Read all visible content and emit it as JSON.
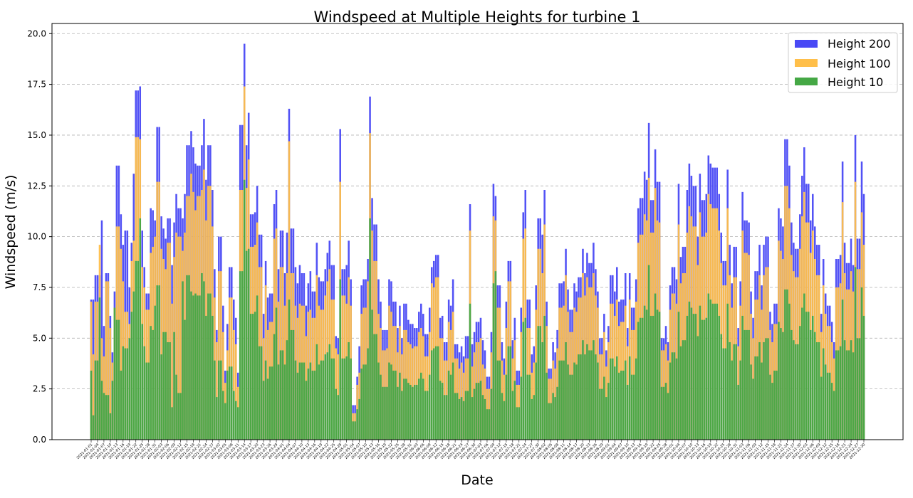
{
  "chart_data": {
    "type": "bar",
    "title": "Windspeed at Multiple Heights for turbine 1",
    "xlabel": "Date",
    "ylabel": "Windspeed (m/s)",
    "ylim": [
      0,
      20.5
    ],
    "yticks": [
      "0.0",
      "2.5",
      "5.0",
      "7.5",
      "10.0",
      "12.5",
      "15.0",
      "17.5",
      "20.0"
    ],
    "grid": "y, dashed",
    "legend_position": "top-right",
    "x_start": "2021-01-01",
    "x_end": "2021-12-30",
    "x_tick_labels": [
      "2021-01-01",
      "2021-01-04",
      "2021-01-07",
      "2021-01-10",
      "2021-01-13",
      "2021-01-16",
      "2021-01-19",
      "2021-01-22",
      "2021-01-25",
      "2021-01-28",
      "2021-01-31",
      "2021-02-03",
      "2021-02-06",
      "2021-02-09",
      "2021-02-12",
      "2021-02-15",
      "2021-02-18",
      "2021-02-21",
      "2021-02-24",
      "2021-02-27",
      "2021-03-02",
      "2021-03-05",
      "2021-03-08",
      "2021-03-11",
      "2021-03-14",
      "2021-03-17",
      "2021-03-20",
      "2021-03-23",
      "2021-03-26",
      "2021-03-29",
      "2021-04-01",
      "2021-04-04",
      "2021-04-07",
      "2021-04-10",
      "2021-04-13",
      "2021-04-16",
      "2021-04-19",
      "2021-04-22",
      "2021-04-25",
      "2021-04-28",
      "2021-05-01",
      "2021-05-04",
      "2021-05-07",
      "2021-05-10",
      "2021-05-13",
      "2021-05-16",
      "2021-05-19",
      "2021-05-22",
      "2021-05-25",
      "2021-05-28",
      "2021-05-31",
      "2021-06-03",
      "2021-06-06",
      "2021-06-09",
      "2021-06-12",
      "2021-06-15",
      "2021-06-18",
      "2021-06-21",
      "2021-06-24",
      "2021-06-27",
      "2021-06-30",
      "2021-07-03",
      "2021-07-06",
      "2021-07-09",
      "2021-07-12",
      "2021-07-15",
      "2021-07-18",
      "2021-07-21",
      "2021-07-24",
      "2021-07-27",
      "2021-07-30",
      "2021-08-02",
      "2021-08-05",
      "2021-08-08",
      "2021-08-11",
      "2021-08-14",
      "2021-08-17",
      "2021-08-20",
      "2021-08-23",
      "2021-08-26",
      "2021-08-29",
      "2021-09-01",
      "2021-09-04",
      "2021-09-07",
      "2021-09-10",
      "2021-09-13",
      "2021-09-16",
      "2021-09-19",
      "2021-09-22",
      "2021-09-25",
      "2021-09-28",
      "2021-10-01",
      "2021-10-04",
      "2021-10-07",
      "2021-10-10",
      "2021-10-13",
      "2021-10-16",
      "2021-10-19",
      "2021-10-22",
      "2021-10-25",
      "2021-10-28",
      "2021-10-31",
      "2021-11-03",
      "2021-11-06",
      "2021-11-09",
      "2021-11-12",
      "2021-11-15",
      "2021-11-18",
      "2021-11-21",
      "2021-11-24",
      "2021-11-27",
      "2021-11-30",
      "2021-12-03",
      "2021-12-06",
      "2021-12-09",
      "2021-12-12",
      "2021-12-15",
      "2021-12-18",
      "2021-12-21",
      "2021-12-24",
      "2021-12-27",
      "2021-12-30"
    ],
    "series": [
      {
        "name": "Height 200",
        "color": "#4949f5",
        "values": [
          6.9,
          6.9,
          8.1,
          8.1,
          10.8,
          5.6,
          8.2,
          6.1,
          4.3,
          7.3,
          13.5,
          11.1,
          9.6,
          10.3,
          7.5,
          9.7,
          13.1,
          17.2,
          17.4,
          10.3,
          8.5,
          7.2,
          11.4,
          11.3,
          10.8,
          15.4,
          11.0,
          10.4,
          9.9,
          10.9,
          8.6,
          10.7,
          12.1,
          11.4,
          10.9,
          12.1,
          14.5,
          15.2,
          14.4,
          13.6,
          13.5,
          14.5,
          15.8,
          12.8,
          14.5,
          12.3,
          8.4,
          5.4,
          10.0,
          6.6,
          3.4,
          5.7,
          8.5,
          6.9,
          6.0,
          3.3,
          15.5,
          19.5,
          14.5,
          16.1,
          11.1,
          11.2,
          12.5,
          10.1,
          6.2,
          8.8,
          7.0,
          7.2,
          11.6,
          12.3,
          8.4,
          10.3,
          8.2,
          10.2,
          16.3,
          10.4,
          8.5,
          7.7,
          8.6,
          8.2,
          6.6,
          7.7,
          8.3,
          7.3,
          9.7,
          8.0,
          7.8,
          8.4,
          9.2,
          9.8,
          8.6,
          5.1,
          5.0,
          15.3,
          8.4,
          8.6,
          9.8,
          7.9,
          1.7,
          3.1,
          4.6,
          7.6,
          7.9,
          8.9,
          16.9,
          11.9,
          10.6,
          7.9,
          6.8,
          5.4,
          5.4,
          7.9,
          7.8,
          6.8,
          5.5,
          6.6,
          5.0,
          6.7,
          5.9,
          5.7,
          5.7,
          5.5,
          6.3,
          6.7,
          6.2,
          5.2,
          6.5,
          8.5,
          8.8,
          9.1,
          6.0,
          6.1,
          4.8,
          6.9,
          6.6,
          7.9,
          4.7,
          4.3,
          4.6,
          4.1,
          5.1,
          11.6,
          4.7,
          5.3,
          5.8,
          6.0,
          4.9,
          4.4,
          3.1,
          5.3,
          12.6,
          12.0,
          7.6,
          4.8,
          4.0,
          6.8,
          8.8,
          4.9,
          6.0,
          3.4,
          6.5,
          11.2,
          12.3,
          6.9,
          4.2,
          4.6,
          7.6,
          10.9,
          10.1,
          12.3,
          6.8,
          3.5,
          4.8,
          4.3,
          5.4,
          7.7,
          7.8,
          9.4,
          7.4,
          6.4,
          7.7,
          7.3,
          8.0,
          9.4,
          8.2,
          9.2,
          8.7,
          9.7,
          8.4,
          7.3,
          5.0,
          6.2,
          4.4,
          5.6,
          8.1,
          7.3,
          8.5,
          6.8,
          6.9,
          8.2,
          5.5,
          8.2,
          6.5,
          7.9,
          11.4,
          11.9,
          13.2,
          12.8,
          15.6,
          11.8,
          14.3,
          12.7,
          12.7,
          5.0,
          5.6,
          4.8,
          7.6,
          8.5,
          7.9,
          12.6,
          9.0,
          9.5,
          12.3,
          13.6,
          13.0,
          12.5,
          10.0,
          13.1,
          11.8,
          12.1,
          14.0,
          13.6,
          13.4,
          13.4,
          12.1,
          10.2,
          8.8,
          13.3,
          9.6,
          7.7,
          9.5,
          5.5,
          7.8,
          12.2,
          10.8,
          10.7,
          7.3,
          6.0,
          8.3,
          9.6,
          7.6,
          9.6,
          10.0,
          6.3,
          5.7,
          6.7,
          11.4,
          10.9,
          10.5,
          14.8,
          13.5,
          10.7,
          9.7,
          9.4,
          11.1,
          13.0,
          14.4,
          12.6,
          10.8,
          12.1,
          10.5,
          9.6,
          6.2,
          8.9,
          7.2,
          6.6,
          5.8,
          4.8,
          8.9,
          9.1,
          13.7,
          9.7,
          8.7,
          9.9,
          8.6,
          15.0,
          9.9,
          13.7,
          12.1
        ],
        "note": ""
      },
      {
        "name": "Height 100",
        "color": "#ffbf4a",
        "values": [
          6.8,
          4.2,
          6.8,
          9.6,
          5.0,
          4.1,
          7.8,
          5.5,
          3.8,
          6.5,
          10.5,
          9.4,
          7.8,
          6.3,
          5.7,
          8.8,
          9.8,
          14.9,
          14.8,
          8.5,
          7.5,
          6.4,
          9.2,
          9.5,
          10.0,
          12.7,
          9.4,
          8.9,
          8.4,
          9.7,
          6.7,
          9.0,
          10.2,
          10.0,
          9.3,
          10.2,
          12.0,
          13.1,
          12.2,
          11.3,
          12.0,
          12.3,
          13.3,
          10.8,
          12.5,
          10.5,
          7.0,
          4.8,
          8.3,
          5.3,
          2.8,
          4.4,
          7.0,
          5.4,
          4.7,
          2.6,
          12.3,
          17.4,
          12.4,
          13.8,
          9.5,
          9.6,
          10.7,
          8.5,
          5.0,
          7.6,
          5.4,
          5.8,
          9.9,
          10.4,
          6.8,
          8.5,
          6.6,
          8.2,
          14.7,
          8.2,
          6.6,
          6.0,
          6.7,
          6.6,
          5.1,
          6.3,
          6.4,
          6.0,
          8.1,
          6.6,
          6.4,
          7.1,
          7.8,
          8.4,
          6.9,
          4.5,
          4.2,
          12.7,
          7.1,
          6.7,
          8.0,
          6.6,
          1.3,
          2.7,
          3.3,
          6.2,
          6.5,
          7.8,
          15.1,
          10.3,
          8.8,
          6.2,
          5.5,
          4.4,
          4.5,
          6.6,
          6.3,
          5.6,
          4.3,
          5.6,
          4.2,
          5.4,
          4.8,
          4.7,
          4.5,
          4.6,
          5.3,
          5.5,
          5.1,
          4.1,
          5.3,
          7.7,
          7.5,
          8.0,
          5.0,
          5.0,
          3.9,
          5.8,
          5.4,
          6.3,
          4.0,
          3.5,
          3.8,
          3.3,
          4.0,
          10.3,
          3.6,
          4.3,
          4.8,
          5.0,
          3.7,
          3.5,
          2.5,
          4.3,
          11.0,
          10.8,
          6.5,
          3.9,
          3.2,
          5.5,
          7.8,
          4.0,
          4.9,
          2.7,
          5.3,
          9.9,
          10.4,
          5.5,
          3.3,
          3.8,
          6.4,
          9.4,
          8.2,
          10.6,
          5.6,
          3.0,
          3.9,
          3.5,
          4.5,
          6.5,
          6.6,
          8.1,
          6.3,
          5.3,
          6.5,
          6.3,
          7.0,
          8.2,
          7.1,
          8.0,
          7.5,
          8.2,
          7.1,
          6.5,
          4.2,
          5.3,
          3.6,
          4.8,
          6.7,
          6.1,
          6.9,
          5.6,
          5.8,
          6.6,
          4.6,
          6.9,
          5.4,
          6.8,
          9.7,
          10.1,
          11.1,
          10.8,
          12.9,
          10.2,
          12.4,
          10.8,
          10.7,
          4.4,
          4.7,
          3.9,
          6.4,
          7.2,
          6.7,
          10.6,
          7.7,
          8.2,
          10.2,
          11.5,
          11.0,
          10.5,
          8.6,
          11.2,
          10.0,
          10.2,
          12.1,
          11.6,
          11.4,
          11.4,
          10.3,
          8.7,
          7.6,
          11.4,
          8.1,
          6.5,
          8.0,
          4.6,
          6.6,
          10.3,
          9.2,
          9.1,
          6.2,
          5.0,
          6.9,
          8.1,
          6.4,
          8.1,
          8.5,
          5.4,
          4.8,
          5.7,
          9.8,
          9.3,
          8.9,
          12.5,
          11.4,
          9.1,
          8.3,
          8.0,
          9.4,
          11.0,
          12.2,
          10.7,
          9.2,
          10.3,
          8.9,
          8.1,
          5.3,
          7.6,
          6.2,
          5.6,
          4.8,
          4.0,
          7.5,
          7.7,
          11.7,
          8.2,
          7.4,
          8.3,
          7.3,
          12.7,
          8.4,
          11.2,
          9.6
        ],
        "note": ""
      },
      {
        "name": "Height 10",
        "color": "#45a845",
        "values": [
          3.4,
          1.2,
          3.9,
          7.0,
          2.9,
          2.3,
          2.2,
          1.3,
          2.9,
          6.5,
          5.9,
          3.4,
          4.6,
          4.5,
          5.0,
          6.3,
          7.3,
          8.8,
          10.9,
          5.7,
          4.6,
          3.8,
          5.6,
          5.4,
          6.6,
          7.6,
          4.2,
          5.3,
          5.3,
          4.8,
          1.6,
          5.3,
          3.2,
          2.3,
          7.8,
          5.9,
          8.1,
          7.3,
          7.1,
          7.2,
          7.1,
          8.2,
          7.8,
          6.1,
          7.2,
          6.1,
          3.9,
          2.1,
          3.9,
          2.4,
          1.8,
          3.4,
          3.6,
          2.4,
          1.9,
          1.6,
          8.3,
          12.8,
          9.3,
          9.4,
          6.2,
          6.3,
          7.1,
          4.6,
          2.9,
          3.9,
          3.0,
          3.6,
          5.2,
          6.5,
          3.7,
          4.4,
          3.7,
          4.9,
          6.9,
          5.4,
          3.9,
          3.3,
          3.8,
          3.8,
          2.9,
          3.5,
          3.8,
          3.4,
          4.7,
          3.7,
          3.9,
          4.2,
          4.3,
          4.7,
          4.0,
          2.5,
          2.2,
          7.9,
          4.0,
          4.1,
          4.8,
          4.0,
          0.9,
          1.5,
          2.0,
          3.5,
          3.7,
          4.5,
          10.9,
          6.4,
          5.2,
          3.8,
          3.2,
          2.6,
          2.6,
          3.8,
          3.7,
          3.4,
          2.6,
          3.3,
          2.4,
          3.0,
          2.8,
          2.7,
          2.6,
          2.7,
          3.0,
          3.3,
          3.0,
          2.4,
          3.2,
          4.4,
          4.5,
          4.6,
          2.9,
          2.8,
          2.2,
          3.4,
          3.2,
          3.8,
          2.3,
          2.0,
          2.1,
          1.9,
          2.4,
          6.7,
          2.1,
          2.5,
          2.8,
          2.9,
          2.2,
          2.0,
          1.5,
          2.5,
          7.7,
          8.3,
          3.9,
          2.3,
          1.9,
          3.2,
          4.6,
          2.4,
          2.9,
          1.6,
          3.1,
          5.8,
          6.0,
          3.2,
          2.0,
          2.2,
          3.8,
          5.6,
          4.8,
          6.1,
          3.3,
          1.8,
          2.3,
          2.1,
          2.6,
          3.9,
          3.9,
          4.8,
          3.7,
          3.2,
          3.8,
          3.7,
          4.2,
          4.9,
          4.2,
          4.7,
          4.4,
          4.9,
          4.2,
          3.8,
          2.5,
          3.1,
          2.1,
          2.8,
          4.0,
          3.6,
          4.1,
          3.3,
          3.4,
          3.9,
          2.7,
          4.1,
          3.2,
          4.0,
          5.8,
          6.0,
          6.6,
          6.4,
          8.6,
          6.1,
          7.2,
          6.4,
          6.3,
          2.6,
          2.8,
          2.3,
          3.8,
          4.3,
          4.0,
          6.3,
          4.6,
          4.9,
          6.1,
          6.8,
          6.5,
          6.2,
          5.1,
          6.6,
          5.9,
          6.0,
          7.2,
          6.9,
          6.7,
          6.7,
          6.1,
          5.2,
          4.5,
          6.7,
          4.8,
          3.9,
          4.7,
          2.7,
          3.9,
          6.1,
          5.4,
          5.4,
          3.7,
          3.0,
          4.1,
          4.8,
          3.8,
          4.8,
          5.0,
          3.2,
          2.8,
          3.4,
          5.8,
          5.5,
          5.3,
          7.4,
          6.7,
          5.4,
          4.9,
          4.7,
          5.6,
          6.5,
          7.2,
          6.3,
          5.4,
          6.1,
          5.3,
          4.8,
          3.1,
          4.5,
          3.7,
          3.3,
          2.8,
          2.4,
          4.4,
          4.6,
          6.9,
          4.9,
          4.4,
          4.9,
          4.3,
          8.5,
          5.0,
          7.5,
          6.1
        ],
        "note": ""
      }
    ]
  }
}
